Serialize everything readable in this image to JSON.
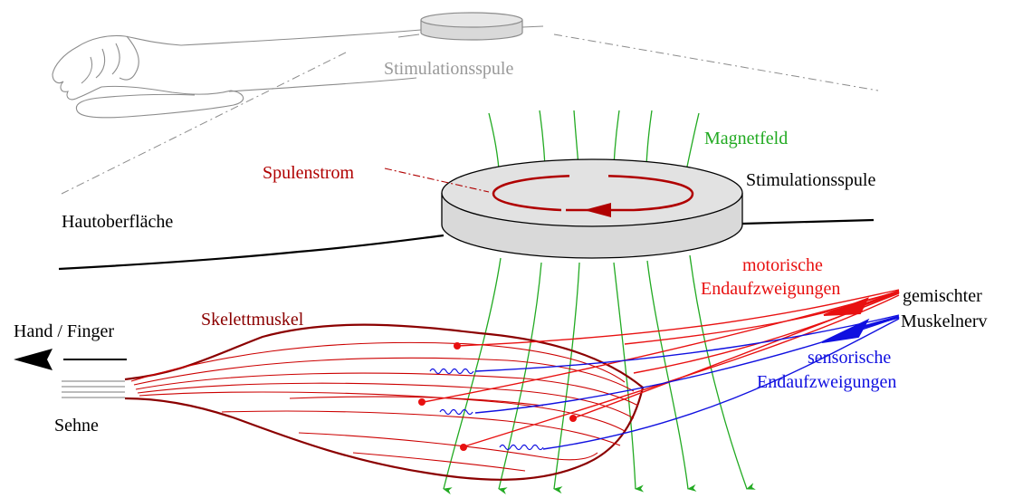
{
  "labels": {
    "top_coil": "Stimulationsspule",
    "magnetic_field": "Magnetfeld",
    "coil_current": "Spulenstrom",
    "coil": "Stimulationsspule",
    "skin_surface": "Hautoberfläche",
    "motor_branches_line1": "motorische",
    "motor_branches_line2": "Endaufzweigungen",
    "mixed_nerve_line1": "gemischter",
    "mixed_nerve_line2": "Muskelnerv",
    "skeletal_muscle": "Skelettmuskel",
    "hand_finger": "Hand / Finger",
    "sensory_branches_line1": "sensorische",
    "sensory_branches_line2": "Endaufzweigungen",
    "tendon": "Sehne"
  },
  "colors": {
    "field": "#22aa22",
    "current": "#b00000",
    "motor": "#e81010",
    "sensory": "#1010e0",
    "muscle": "#8b0000",
    "coil_fill": "#d9d9d9",
    "top_gray": "#999999"
  }
}
